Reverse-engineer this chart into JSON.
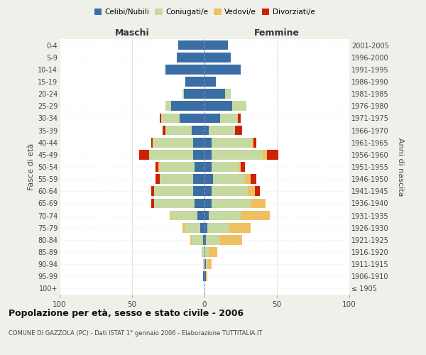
{
  "age_groups": [
    "100+",
    "95-99",
    "90-94",
    "85-89",
    "80-84",
    "75-79",
    "70-74",
    "65-69",
    "60-64",
    "55-59",
    "50-54",
    "45-49",
    "40-44",
    "35-39",
    "30-34",
    "25-29",
    "20-24",
    "15-19",
    "10-14",
    "5-9",
    "0-4"
  ],
  "birth_years": [
    "≤ 1905",
    "1906-1910",
    "1911-1915",
    "1916-1920",
    "1921-1925",
    "1926-1930",
    "1931-1935",
    "1936-1940",
    "1941-1945",
    "1946-1950",
    "1951-1955",
    "1956-1960",
    "1961-1965",
    "1966-1970",
    "1971-1975",
    "1976-1980",
    "1981-1985",
    "1986-1990",
    "1991-1995",
    "1996-2000",
    "2001-2005"
  ],
  "maschi": {
    "celibi": [
      0,
      1,
      0,
      0,
      1,
      3,
      5,
      7,
      8,
      8,
      7,
      8,
      8,
      9,
      17,
      23,
      14,
      13,
      27,
      19,
      18
    ],
    "coniugati": [
      0,
      0,
      1,
      2,
      8,
      10,
      18,
      28,
      27,
      23,
      24,
      30,
      28,
      18,
      13,
      4,
      1,
      0,
      0,
      0,
      0
    ],
    "vedovi": [
      0,
      0,
      0,
      0,
      1,
      2,
      1,
      0,
      0,
      0,
      1,
      0,
      0,
      0,
      0,
      0,
      0,
      0,
      0,
      0,
      0
    ],
    "divorziati": [
      0,
      0,
      0,
      0,
      0,
      0,
      0,
      2,
      2,
      3,
      2,
      7,
      1,
      2,
      1,
      0,
      0,
      0,
      0,
      0,
      0
    ]
  },
  "femmine": {
    "nubili": [
      0,
      1,
      1,
      0,
      1,
      2,
      3,
      5,
      5,
      6,
      5,
      5,
      5,
      3,
      11,
      19,
      14,
      8,
      25,
      18,
      16
    ],
    "coniugate": [
      0,
      0,
      1,
      3,
      10,
      15,
      22,
      27,
      25,
      22,
      19,
      35,
      28,
      18,
      12,
      10,
      4,
      0,
      0,
      0,
      0
    ],
    "vedove": [
      0,
      1,
      3,
      6,
      15,
      15,
      20,
      10,
      5,
      4,
      1,
      3,
      1,
      0,
      0,
      0,
      0,
      0,
      0,
      0,
      0
    ],
    "divorziate": [
      0,
      0,
      0,
      0,
      0,
      0,
      0,
      0,
      3,
      4,
      3,
      8,
      2,
      5,
      2,
      0,
      0,
      0,
      0,
      0,
      0
    ]
  },
  "colors": {
    "celibi_nubili": "#3a6ea5",
    "coniugati_e": "#c5d9a0",
    "vedovi_e": "#f0c060",
    "divorziati_e": "#cc2200"
  },
  "xlim": 100,
  "title": "Popolazione per età, sesso e stato civile - 2006",
  "subtitle": "COMUNE DI GAZZOLA (PC) - Dati ISTAT 1° gennaio 2006 - Elaborazione TUTTITALIA.IT",
  "ylabel_left": "Fasce di età",
  "ylabel_right": "Anni di nascita",
  "xlabel_left": "Maschi",
  "xlabel_right": "Femmine",
  "bg_color": "#f0f0eb",
  "plot_bg": "#ffffff"
}
